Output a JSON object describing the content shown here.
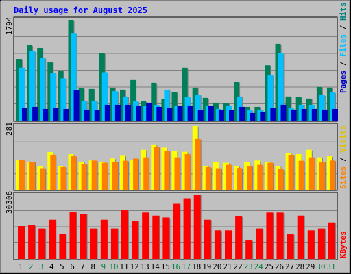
{
  "chart_data": {
    "type": "bar",
    "title": "Daily usage for August 2025",
    "categories": [
      "1",
      "2",
      "3",
      "4",
      "5",
      "6",
      "7",
      "8",
      "9",
      "10",
      "11",
      "12",
      "13",
      "14",
      "15",
      "16",
      "17",
      "18",
      "19",
      "20",
      "21",
      "22",
      "23",
      "24",
      "25",
      "26",
      "27",
      "28",
      "29",
      "30",
      "31"
    ],
    "weekend_days": [
      "2",
      "3",
      "9",
      "10",
      "16",
      "17",
      "23",
      "24",
      "30",
      "31"
    ],
    "panels": [
      {
        "name": "hits-files-pages",
        "ymax_label": "1794",
        "ylim": [
          0,
          1794
        ],
        "legend": [
          "Pages",
          "Files",
          "Hits"
        ],
        "series": [
          {
            "name": "Hits",
            "color": "#00805a",
            "values": [
              1098,
              1343,
              1294,
              1037,
              889,
              1794,
              575,
              563,
              1196,
              587,
              551,
              722,
              343,
              673,
              391,
              502,
              942,
              587,
              404,
              318,
              306,
              686,
              245,
              245,
              986,
              1368,
              429,
              416,
              392,
              600,
              588
            ]
          },
          {
            "name": "Files",
            "color": "#00c0ff",
            "values": [
              943,
              1233,
              1117,
              846,
              752,
              1561,
              355,
              355,
              861,
              523,
              429,
              343,
              257,
              269,
              551,
              257,
              419,
              459,
              257,
              208,
              257,
              429,
              184,
              196,
              808,
              1196,
              220,
              282,
              282,
              452,
              502
            ]
          },
          {
            "name": "Pages",
            "color": "#0000c0",
            "values": [
              220,
              245,
              208,
              220,
              208,
              538,
              196,
              184,
              282,
              282,
              282,
              257,
              318,
              245,
              220,
              257,
              257,
              184,
              257,
              196,
              184,
              245,
              135,
              159,
              220,
              282,
              196,
              208,
              208,
              196,
              208
            ]
          }
        ]
      },
      {
        "name": "visits-sites",
        "ymax_label": "281",
        "ylim": [
          0,
          281
        ],
        "legend": [
          "Sites",
          "Visits"
        ],
        "series": [
          {
            "name": "Visits",
            "color": "#ffff00",
            "values": [
              133,
              124,
              105,
              166,
              105,
              157,
              124,
              129,
              124,
              138,
              150,
              133,
              176,
              200,
              186,
              171,
              167,
              281,
              105,
              124,
              119,
              105,
              124,
              129,
              124,
              105,
              162,
              157,
              176,
              143,
              148
            ]
          },
          {
            "name": "Sites",
            "color": "#ff8000",
            "values": [
              133,
              124,
              95,
              152,
              100,
              148,
              114,
              129,
              119,
              124,
              128,
              138,
              143,
              190,
              172,
              143,
              157,
              224,
              100,
              95,
              110,
              96,
              105,
              110,
              119,
              91,
              152,
              128,
              143,
              124,
              129
            ]
          }
        ]
      },
      {
        "name": "kbytes",
        "ymax_label": "30306",
        "ylim": [
          0,
          30306
        ],
        "legend": [
          "KBytes"
        ],
        "series": [
          {
            "name": "KBytes",
            "color": "#ff0000",
            "values": [
              15474,
              15913,
              14306,
              18467,
              11714,
              22000,
              21254,
              14306,
              18467,
              14306,
              22874,
              18000,
              21826,
              20394,
              19523,
              25947,
              28513,
              30306,
              18467,
              13447,
              13447,
              20000,
              8684,
              14306,
              21826,
              21826,
              11714,
              20394,
              13447,
              14306,
              17173
            ]
          }
        ]
      }
    ]
  }
}
